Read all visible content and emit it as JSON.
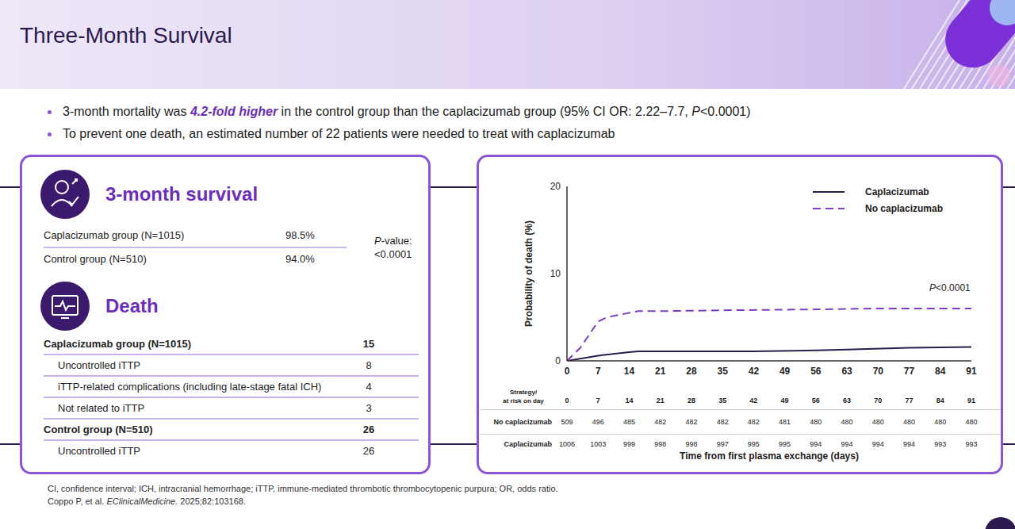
{
  "header": {
    "title": "Three-Month Survival"
  },
  "bullets": [
    [
      {
        "text": "3-month mortality was "
      },
      {
        "text": "4.2-fold higher",
        "bold": true,
        "italic": true,
        "color": "#6a2fb8"
      },
      {
        "text": " in the control group than the caplacizumab group (95% CI OR: 2.22–7.7, "
      },
      {
        "text": "P",
        "italic": true
      },
      {
        "text": "<0.0001)"
      }
    ],
    [
      {
        "text": "To prevent one death, an estimated number of 22 patients were needed to treat with caplacizumab"
      }
    ]
  ],
  "survival_panel": {
    "title": "3-month survival",
    "rows": [
      {
        "label": "Caplacizumab group (N=1015)",
        "value": "98.5%"
      },
      {
        "label": "Control group (N=510)",
        "value": "94.0%"
      }
    ],
    "p_value_label": [
      {
        "text": "P",
        "italic": true
      },
      {
        "text": "-value:"
      }
    ],
    "p_value": "<0.0001"
  },
  "death_panel": {
    "title": "Death",
    "groups": [
      {
        "label": "Caplacizumab group (N=1015)",
        "value": 15,
        "causes": [
          {
            "label": "Uncontrolled iTTP",
            "value": 8
          },
          {
            "label": "iTTP-related complications (including late-stage fatal ICH)",
            "value": 4
          },
          {
            "label": "Not related to iTTP",
            "value": 3
          }
        ]
      },
      {
        "label": "Control group (N=510)",
        "value": 26,
        "causes": [
          {
            "label": "Uncontrolled iTTP",
            "value": 26
          }
        ]
      }
    ]
  },
  "chart_data": {
    "type": "line",
    "xlabel": "Time from first plasma exchange (days)",
    "ylabel": "Probability of death (%)",
    "xlim": [
      0,
      91
    ],
    "xticks": [
      0,
      7,
      14,
      21,
      28,
      35,
      42,
      49,
      56,
      63,
      70,
      77,
      84,
      91
    ],
    "ylim": [
      0,
      20
    ],
    "yticks": [
      0,
      10,
      20
    ],
    "grid": false,
    "legend": "upper right",
    "annotation": [
      {
        "text": "P",
        "italic": true
      },
      {
        "text": "<0.0001"
      }
    ],
    "series": [
      {
        "name": "Caplacizumab",
        "color": "#2b1d4e",
        "line_style": "solid",
        "x": [
          0,
          7,
          14,
          16,
          28,
          42,
          56,
          63,
          77,
          91
        ],
        "values": [
          0,
          0.6,
          1.0,
          1.1,
          1.1,
          1.1,
          1.2,
          1.3,
          1.5,
          1.6
        ]
      },
      {
        "name": "No caplacizumab",
        "color": "#7b3fc4",
        "line_style": "dashed",
        "x": [
          0,
          3,
          7,
          9,
          14,
          16,
          21,
          35,
          56,
          70,
          91
        ],
        "values": [
          0,
          1.5,
          4.5,
          5.0,
          5.5,
          5.7,
          5.7,
          5.8,
          5.9,
          6.0,
          6.0
        ]
      }
    ],
    "at_risk": {
      "header": [
        "Strategy/",
        "at risk on day"
      ],
      "days": [
        0,
        7,
        14,
        21,
        28,
        35,
        42,
        49,
        56,
        63,
        70,
        77,
        84,
        91
      ],
      "rows": [
        {
          "name": "No caplacizumab",
          "values": [
            509,
            496,
            485,
            482,
            482,
            482,
            482,
            481,
            480,
            480,
            480,
            480,
            480,
            480
          ]
        },
        {
          "name": "Caplacizumab",
          "values": [
            1006,
            1003,
            999,
            998,
            998,
            997,
            995,
            995,
            994,
            994,
            994,
            994,
            993,
            993
          ]
        }
      ]
    }
  },
  "footnotes": [
    [
      {
        "text": "CI, confidence interval; ICH, intracranial hemorrhage; iTTP, immune-mediated thrombotic thrombocytopenic purpura; OR, odds ratio."
      }
    ],
    [
      {
        "text": "Coppo P, et al. "
      },
      {
        "text": "EClinicalMedicine.",
        "italic": true
      },
      {
        "text": " 2025;82:103168."
      }
    ]
  ]
}
